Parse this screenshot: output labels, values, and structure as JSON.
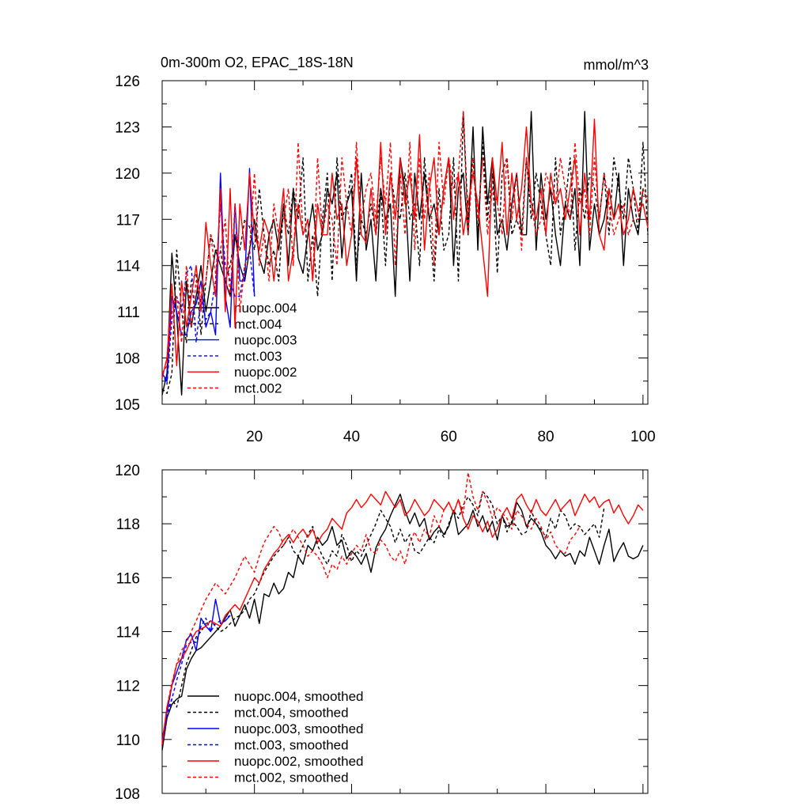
{
  "chart_data": [
    {
      "type": "line",
      "title": "0m-300m O2, EPAC_18S-18N",
      "units": "mmol/m^3",
      "xlim": [
        1,
        101
      ],
      "ylim": [
        105,
        126
      ],
      "xticks": [
        20,
        40,
        60,
        80,
        100
      ],
      "yticks": [
        105,
        108,
        111,
        114,
        117,
        120,
        123,
        126
      ],
      "legend_position": "lower-left",
      "series": [
        {
          "name": "nuopc.004",
          "color": "#000000",
          "dash": false,
          "x_start": 1,
          "values": [
            105.6,
            107,
            114.8,
            110.8,
            105.6,
            113,
            110,
            112,
            114,
            111,
            113,
            115,
            114,
            113,
            112,
            116,
            114,
            113,
            115,
            117,
            114.5,
            113.5,
            116,
            117,
            115,
            118,
            114,
            119,
            114.5,
            113.5,
            116,
            118,
            115,
            116,
            119,
            118,
            120,
            114.5,
            118,
            119,
            113,
            120,
            115,
            117,
            113,
            119,
            117,
            118,
            112,
            121,
            119,
            113,
            120,
            117,
            120,
            117,
            118,
            116,
            119,
            121,
            114,
            119,
            120,
            116,
            123,
            115,
            123,
            118,
            121,
            116,
            117,
            115,
            118,
            120,
            116,
            116,
            124,
            115,
            120,
            117,
            119,
            116,
            114,
            118,
            117,
            119,
            114,
            124,
            115,
            118,
            116,
            117,
            119,
            117,
            120,
            114,
            119,
            117,
            116,
            119
          ]
        },
        {
          "name": "mct.004",
          "color": "#000000",
          "dash": true,
          "x_start": 1,
          "values": [
            106,
            105.7,
            107,
            115,
            111,
            109,
            113,
            113.5,
            109.5,
            113,
            116,
            115,
            115,
            113,
            114,
            116,
            115,
            117,
            116.5,
            115,
            119,
            116,
            114,
            115,
            113,
            118,
            116,
            119,
            117,
            121,
            113,
            116,
            112,
            117,
            120,
            113,
            121,
            117,
            118,
            120,
            114,
            117,
            116,
            118,
            116,
            119,
            114,
            120,
            118,
            117,
            120,
            117,
            118,
            114,
            121,
            117,
            113,
            119,
            115,
            116,
            121,
            113,
            124,
            117,
            121,
            116,
            122,
            117,
            120,
            113.5,
            120,
            121,
            116,
            117,
            116,
            121,
            117,
            120,
            118,
            116,
            114,
            121,
            116,
            118,
            121,
            115,
            119,
            117,
            120,
            119,
            117,
            120,
            116,
            121,
            119,
            117,
            121,
            119,
            116,
            122,
            116
          ]
        },
        {
          "name": "nuopc.003",
          "color": "#0000ff",
          "dash": false,
          "x_start": 1,
          "values": [
            107,
            106.5,
            112,
            111,
            109.5,
            109.5,
            111,
            111.5,
            113,
            110,
            111,
            109.5,
            120,
            112,
            110,
            118,
            113,
            113,
            120.3,
            112
          ]
        },
        {
          "name": "mct.003",
          "color": "#0000ff",
          "dash": true,
          "x_start": 1,
          "values": [
            107,
            106.3,
            110.5,
            112,
            111,
            113.5,
            114,
            109,
            112,
            110.5,
            111,
            113,
            118,
            114,
            113,
            112,
            112,
            114,
            115,
            112
          ]
        },
        {
          "name": "nuopc.002",
          "color": "#ff0000",
          "dash": false,
          "x_start": 1,
          "values": [
            106.7,
            108,
            112.8,
            107.5,
            113,
            110,
            112,
            114,
            111,
            116.8,
            114,
            112,
            119,
            111,
            119,
            110,
            118,
            115,
            120,
            116,
            115,
            117,
            116,
            113,
            116,
            119,
            113,
            115,
            118,
            116,
            117,
            113,
            118,
            116,
            116,
            120,
            117,
            118,
            114,
            116,
            121,
            116,
            115.5,
            119,
            116,
            122,
            116,
            120,
            117,
            121,
            118,
            120,
            117,
            122.5,
            115,
            119,
            121,
            116,
            119,
            121,
            117,
            120,
            116,
            118,
            120,
            118,
            115,
            112,
            121,
            118,
            122,
            116,
            120,
            117,
            119,
            123,
            118,
            117,
            119,
            116,
            120,
            118,
            119,
            117,
            119,
            121,
            116,
            120,
            117,
            123.5,
            116,
            115,
            119,
            117,
            118,
            116,
            117,
            119,
            117.5,
            118,
            116.5
          ]
        },
        {
          "name": "mct.002",
          "color": "#ff0000",
          "dash": true,
          "x_start": 1,
          "values": [
            107,
            107.5,
            111,
            112,
            109,
            114,
            110,
            113,
            112,
            113,
            116,
            113.5,
            115,
            117,
            112,
            118,
            111,
            114,
            115,
            120,
            114,
            116,
            113,
            118,
            116,
            117,
            119,
            114,
            122,
            116,
            117,
            113,
            121,
            116,
            118,
            117,
            114,
            121,
            118,
            116,
            122,
            117,
            119,
            120,
            117,
            121,
            118,
            122,
            114,
            120,
            116,
            122,
            115,
            121,
            117,
            120,
            114,
            122,
            118,
            121,
            119,
            120,
            124,
            116,
            121,
            117,
            121,
            116,
            119,
            118,
            116,
            121,
            117,
            120,
            115,
            121,
            118,
            116,
            117,
            120,
            119,
            118,
            121,
            119,
            117,
            122,
            118,
            119,
            116,
            121,
            117,
            120,
            118,
            116,
            117,
            118,
            116,
            117,
            117,
            119,
            118
          ]
        }
      ]
    },
    {
      "type": "line",
      "title": "",
      "xlim": [
        1,
        101
      ],
      "ylim": [
        108,
        120
      ],
      "yticks": [
        108,
        110,
        112,
        114,
        116,
        118,
        120
      ],
      "legend_position": "lower-left",
      "series": [
        {
          "name": "nuopc.004, smoothed",
          "color": "#000000",
          "dash": false,
          "x_start": 1,
          "values": [
            109.6,
            110.8,
            111.3,
            111.5,
            111.6,
            112.6,
            113.0,
            113.3,
            113.4,
            113.6,
            113.8,
            114.0,
            114.2,
            114.5,
            114.8,
            114.2,
            114.6,
            115.0,
            114.5,
            115.2,
            114.3,
            115.4,
            115.3,
            115.8,
            115.4,
            115.6,
            116.2,
            116.0,
            116.8,
            116.5,
            117.2,
            117.0,
            117.5,
            117.2,
            117.4,
            117.9,
            117.2,
            117.4,
            116.7,
            117.0,
            116.8,
            116.5,
            116.9,
            116.2,
            117.1,
            117.5,
            117.8,
            118.3,
            118.7,
            119.1,
            118.5,
            118.0,
            118.4,
            117.9,
            118.2,
            117.4,
            117.7,
            117.9,
            117.6,
            117.9,
            118.5,
            117.6,
            117.8,
            118.0,
            118.5,
            117.9,
            118.3,
            117.7,
            118.1,
            117.4,
            118.3,
            117.9,
            118.0,
            118.8,
            118.5,
            117.9,
            118.2,
            118.0,
            117.7,
            117.2,
            117.0,
            116.7,
            117.0,
            116.8,
            116.9,
            116.5,
            117.0,
            116.8,
            117.5,
            117.0,
            116.5,
            117.2,
            117.8,
            116.6,
            117.0,
            117.3,
            116.8,
            116.7,
            116.8,
            117.2
          ]
        },
        {
          "name": "mct.004, smoothed",
          "color": "#000000",
          "dash": true,
          "x_start": 1,
          "values": [
            109.8,
            111.0,
            111.5,
            111.2,
            112.0,
            112.8,
            113.3,
            113.8,
            114.0,
            114.3,
            114.4,
            114.2,
            114.0,
            114.1,
            114.3,
            114.5,
            114.6,
            114.8,
            115.2,
            115.4,
            115.8,
            116.2,
            116.5,
            116.8,
            117.0,
            117.2,
            117.5,
            117.0,
            116.8,
            117.2,
            117.6,
            117.9,
            117.2,
            116.8,
            116.5,
            117.0,
            116.8,
            117.6,
            117.2,
            116.6,
            117.0,
            116.8,
            117.2,
            117.6,
            118.0,
            118.5,
            118.2,
            117.9,
            117.3,
            117.8,
            117.3,
            117.6,
            117.0,
            116.9,
            117.2,
            117.5,
            117.3,
            117.8,
            117.5,
            118.0,
            118.5,
            118.2,
            118.7,
            119.0,
            118.7,
            118.3,
            119.2,
            119.0,
            118.7,
            118.0,
            118.3,
            117.7,
            118.1,
            117.9,
            117.6,
            117.7,
            118.5,
            118.0,
            117.8,
            117.5,
            118.2,
            117.8,
            118.5,
            118.3,
            117.8,
            118.0,
            117.9,
            117.6,
            117.8,
            118.0,
            117.5,
            118.6
          ]
        },
        {
          "name": "nuopc.003, smoothed",
          "color": "#0000ff",
          "dash": false,
          "x_start": 1,
          "values": [
            110.0,
            111.0,
            112.0,
            112.5,
            113.0,
            113.7,
            113.9,
            113.3,
            114.5,
            114.2,
            114.0,
            115.2,
            114.3,
            114.4,
            114.6
          ]
        },
        {
          "name": "mct.003, smoothed",
          "color": "#0000ff",
          "dash": true,
          "x_start": 1,
          "values": [
            109.8,
            110.8,
            111.5,
            112.2,
            112.8,
            113.5,
            113.6,
            113.6,
            114.2,
            114.5,
            114.0,
            114.3,
            114.4,
            114.5,
            114.6
          ]
        },
        {
          "name": "nuopc.002, smoothed",
          "color": "#ff0000",
          "dash": false,
          "x_start": 1,
          "values": [
            109.8,
            111.2,
            112.0,
            112.8,
            113.0,
            113.3,
            113.7,
            114.0,
            114.1,
            114.2,
            114.4,
            114.3,
            114.2,
            114.6,
            114.8,
            115.0,
            114.8,
            115.2,
            115.6,
            116.0,
            115.8,
            116.3,
            116.6,
            116.9,
            117.1,
            117.4,
            117.6,
            117.3,
            117.6,
            117.8,
            117.5,
            117.8,
            117.3,
            117.6,
            117.8,
            118.2,
            118.0,
            117.8,
            118.4,
            118.6,
            118.9,
            118.6,
            118.8,
            119.1,
            118.9,
            118.7,
            119.2,
            118.9,
            118.6,
            118.9,
            118.3,
            118.5,
            118.9,
            118.6,
            118.3,
            118.5,
            118.9,
            118.7,
            118.5,
            118.8,
            118.4,
            118.9,
            118.2,
            117.8,
            118.3,
            118.1,
            117.7,
            118.1,
            117.5,
            117.8,
            118.3,
            118.6,
            118.2,
            118.9,
            119.1,
            118.7,
            118.4,
            118.9,
            118.5,
            118.3,
            118.6,
            118.9,
            118.5,
            118.7,
            118.9,
            118.3,
            118.7,
            119.1,
            118.8,
            119.0,
            118.6,
            118.8,
            118.9,
            118.4,
            118.7,
            118.3,
            118.0,
            118.3,
            118.7,
            118.5
          ]
        },
        {
          "name": "mct.002, smoothed",
          "color": "#ff0000",
          "dash": true,
          "x_start": 1,
          "values": [
            109.9,
            111.2,
            112.1,
            112.8,
            113.3,
            113.6,
            114.0,
            114.4,
            114.8,
            115.2,
            115.5,
            115.8,
            115.6,
            115.4,
            115.7,
            116.0,
            116.4,
            116.8,
            116.5,
            116.2,
            116.8,
            117.3,
            117.6,
            117.9,
            117.7,
            117.2,
            117.5,
            117.8,
            117.5,
            117.2,
            116.8,
            117.0,
            116.8,
            116.5,
            116.0,
            116.5,
            116.3,
            116.8,
            116.5,
            116.9,
            117.2,
            117.0,
            117.6,
            117.0,
            116.9,
            117.4,
            117.2,
            116.8,
            116.6,
            117.0,
            116.5,
            117.3,
            117.7,
            117.3,
            117.8,
            117.5,
            118.3,
            117.9,
            118.5,
            118.8,
            118.4,
            118.9,
            118.4,
            119.9,
            119.0,
            118.5,
            119.2,
            118.8,
            118.2,
            118.6,
            118.4,
            118.2,
            117.8,
            118.5,
            118.3,
            118.0,
            117.8,
            118.2,
            117.9,
            117.4,
            117.7,
            117.2,
            117.0,
            116.9,
            117.4,
            117.6,
            117.9
          ]
        }
      ]
    }
  ]
}
